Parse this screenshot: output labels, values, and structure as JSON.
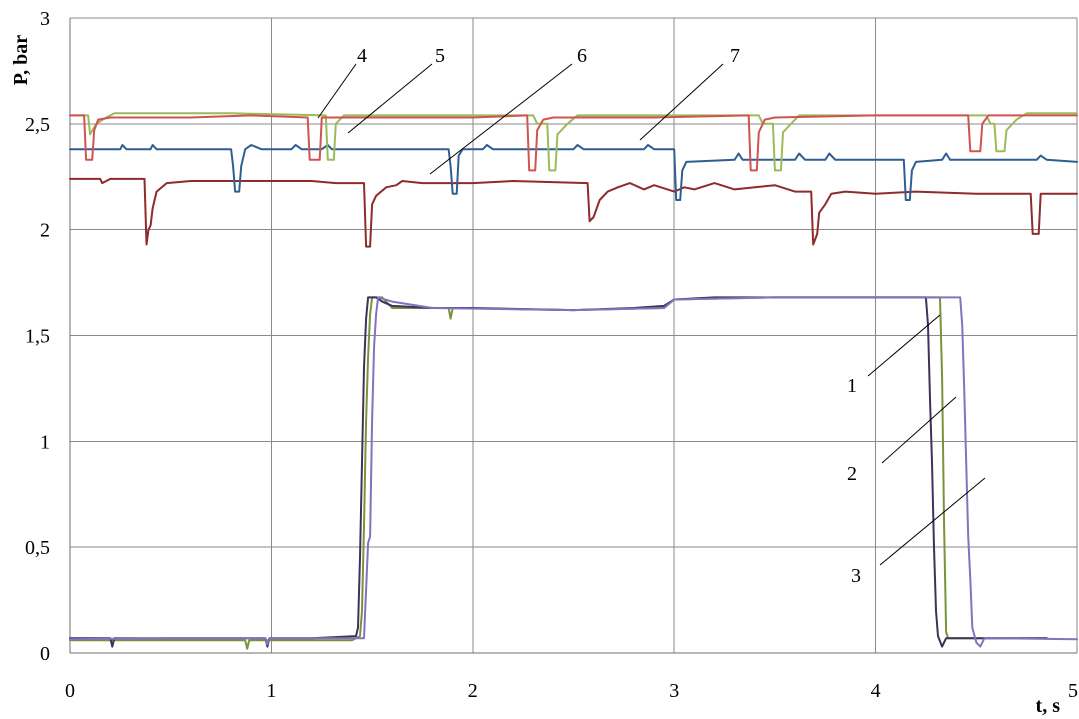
{
  "chart_data": {
    "type": "line",
    "title": "",
    "xlabel": "t, s",
    "ylabel": "P, bar",
    "xlim": [
      0,
      5
    ],
    "ylim": [
      0,
      3
    ],
    "grid": true,
    "legend": "none",
    "xticks": [
      {
        "value": 0,
        "label": "0"
      },
      {
        "value": 1,
        "label": "1"
      },
      {
        "value": 2,
        "label": "2"
      },
      {
        "value": 3,
        "label": "3"
      },
      {
        "value": 4,
        "label": "4"
      },
      {
        "value": 5,
        "label": "5"
      }
    ],
    "yticks": [
      {
        "value": 0,
        "label": "0"
      },
      {
        "value": 0.5,
        "label": "0,5"
      },
      {
        "value": 1,
        "label": "1"
      },
      {
        "value": 1.5,
        "label": "1,5"
      },
      {
        "value": 2,
        "label": "2"
      },
      {
        "value": 2.5,
        "label": "2,5"
      },
      {
        "value": 3,
        "label": "3"
      }
    ],
    "series": [
      {
        "name": "1",
        "color": "#3f3158",
        "points": [
          [
            0,
            0.07
          ],
          [
            0.2,
            0.07
          ],
          [
            0.21,
            0.03
          ],
          [
            0.22,
            0.07
          ],
          [
            0.5,
            0.07
          ],
          [
            0.97,
            0.07
          ],
          [
            0.98,
            0.03
          ],
          [
            0.99,
            0.07
          ],
          [
            1.2,
            0.07
          ],
          [
            1.42,
            0.08
          ],
          [
            1.43,
            0.12
          ],
          [
            1.44,
            0.45
          ],
          [
            1.45,
            0.9
          ],
          [
            1.46,
            1.35
          ],
          [
            1.47,
            1.58
          ],
          [
            1.48,
            1.68
          ],
          [
            1.52,
            1.68
          ],
          [
            1.55,
            1.66
          ],
          [
            1.6,
            1.64
          ],
          [
            1.8,
            1.63
          ],
          [
            2.0,
            1.63
          ],
          [
            2.5,
            1.62
          ],
          [
            2.8,
            1.63
          ],
          [
            2.95,
            1.64
          ],
          [
            3.0,
            1.67
          ],
          [
            3.2,
            1.68
          ],
          [
            3.5,
            1.68
          ],
          [
            4.0,
            1.68
          ],
          [
            4.25,
            1.68
          ],
          [
            4.26,
            1.55
          ],
          [
            4.27,
            1.2
          ],
          [
            4.28,
            0.9
          ],
          [
            4.29,
            0.5
          ],
          [
            4.3,
            0.2
          ],
          [
            4.31,
            0.08
          ],
          [
            4.33,
            0.03
          ],
          [
            4.35,
            0.07
          ],
          [
            4.85,
            0.07
          ]
        ]
      },
      {
        "name": "2",
        "color": "#77933c",
        "points": [
          [
            0,
            0.06
          ],
          [
            0.87,
            0.06
          ],
          [
            0.88,
            0.02
          ],
          [
            0.89,
            0.06
          ],
          [
            1.4,
            0.06
          ],
          [
            1.44,
            0.08
          ],
          [
            1.45,
            0.2
          ],
          [
            1.46,
            0.6
          ],
          [
            1.47,
            1.1
          ],
          [
            1.48,
            1.4
          ],
          [
            1.49,
            1.6
          ],
          [
            1.5,
            1.68
          ],
          [
            1.55,
            1.68
          ],
          [
            1.6,
            1.63
          ],
          [
            1.88,
            1.63
          ],
          [
            1.89,
            1.58
          ],
          [
            1.9,
            1.63
          ],
          [
            2.5,
            1.62
          ],
          [
            2.95,
            1.63
          ],
          [
            3.0,
            1.67
          ],
          [
            3.5,
            1.68
          ],
          [
            4.0,
            1.68
          ],
          [
            4.32,
            1.68
          ],
          [
            4.33,
            1.3
          ],
          [
            4.34,
            0.6
          ],
          [
            4.35,
            0.1
          ],
          [
            4.36,
            0.07
          ],
          [
            4.85,
            0.07
          ]
        ]
      },
      {
        "name": "3",
        "color": "#8273bf",
        "points": [
          [
            0,
            0.065
          ],
          [
            0.5,
            0.07
          ],
          [
            0.97,
            0.07
          ],
          [
            0.98,
            0.04
          ],
          [
            0.99,
            0.07
          ],
          [
            1.46,
            0.07
          ],
          [
            1.47,
            0.3
          ],
          [
            1.48,
            0.52
          ],
          [
            1.49,
            0.55
          ],
          [
            1.5,
            1.1
          ],
          [
            1.51,
            1.45
          ],
          [
            1.52,
            1.6
          ],
          [
            1.53,
            1.68
          ],
          [
            1.6,
            1.66
          ],
          [
            1.8,
            1.63
          ],
          [
            2.5,
            1.62
          ],
          [
            2.95,
            1.63
          ],
          [
            3.0,
            1.67
          ],
          [
            3.5,
            1.68
          ],
          [
            4.0,
            1.68
          ],
          [
            4.42,
            1.68
          ],
          [
            4.43,
            1.55
          ],
          [
            4.44,
            1.25
          ],
          [
            4.45,
            0.9
          ],
          [
            4.46,
            0.55
          ],
          [
            4.47,
            0.35
          ],
          [
            4.48,
            0.12
          ],
          [
            4.5,
            0.05
          ],
          [
            4.52,
            0.03
          ],
          [
            4.54,
            0.07
          ],
          [
            5.0,
            0.065
          ]
        ]
      },
      {
        "name": "4",
        "color": "#cf5450",
        "points": [
          [
            0,
            2.54
          ],
          [
            0.07,
            2.54
          ],
          [
            0.08,
            2.33
          ],
          [
            0.11,
            2.33
          ],
          [
            0.12,
            2.47
          ],
          [
            0.14,
            2.52
          ],
          [
            0.2,
            2.53
          ],
          [
            0.6,
            2.53
          ],
          [
            0.9,
            2.54
          ],
          [
            1.18,
            2.53
          ],
          [
            1.19,
            2.33
          ],
          [
            1.24,
            2.33
          ],
          [
            1.25,
            2.53
          ],
          [
            1.6,
            2.53
          ],
          [
            2.0,
            2.53
          ],
          [
            2.27,
            2.54
          ],
          [
            2.28,
            2.28
          ],
          [
            2.31,
            2.28
          ],
          [
            2.32,
            2.47
          ],
          [
            2.35,
            2.52
          ],
          [
            2.4,
            2.53
          ],
          [
            2.9,
            2.53
          ],
          [
            3.37,
            2.54
          ],
          [
            3.38,
            2.28
          ],
          [
            3.41,
            2.28
          ],
          [
            3.42,
            2.46
          ],
          [
            3.45,
            2.52
          ],
          [
            3.5,
            2.53
          ],
          [
            4.0,
            2.54
          ],
          [
            4.46,
            2.54
          ],
          [
            4.47,
            2.37
          ],
          [
            4.52,
            2.37
          ],
          [
            4.53,
            2.5
          ],
          [
            4.56,
            2.54
          ],
          [
            5.0,
            2.54
          ]
        ]
      },
      {
        "name": "5",
        "color": "#9bbb59",
        "points": [
          [
            0,
            2.54
          ],
          [
            0.09,
            2.54
          ],
          [
            0.1,
            2.45
          ],
          [
            0.13,
            2.5
          ],
          [
            0.18,
            2.53
          ],
          [
            0.22,
            2.55
          ],
          [
            0.8,
            2.55
          ],
          [
            1.27,
            2.54
          ],
          [
            1.28,
            2.33
          ],
          [
            1.31,
            2.33
          ],
          [
            1.32,
            2.5
          ],
          [
            1.36,
            2.54
          ],
          [
            2.3,
            2.54
          ],
          [
            2.32,
            2.5
          ],
          [
            2.37,
            2.5
          ],
          [
            2.38,
            2.28
          ],
          [
            2.41,
            2.28
          ],
          [
            2.42,
            2.45
          ],
          [
            2.47,
            2.5
          ],
          [
            2.52,
            2.54
          ],
          [
            3.42,
            2.54
          ],
          [
            3.44,
            2.5
          ],
          [
            3.49,
            2.5
          ],
          [
            3.5,
            2.28
          ],
          [
            3.53,
            2.28
          ],
          [
            3.54,
            2.46
          ],
          [
            3.58,
            2.5
          ],
          [
            3.62,
            2.54
          ],
          [
            4.55,
            2.54
          ],
          [
            4.57,
            2.5
          ],
          [
            4.59,
            2.5
          ],
          [
            4.6,
            2.37
          ],
          [
            4.64,
            2.37
          ],
          [
            4.65,
            2.47
          ],
          [
            4.7,
            2.52
          ],
          [
            4.75,
            2.55
          ],
          [
            5.0,
            2.55
          ]
        ]
      },
      {
        "name": "6",
        "color": "#8e2b2b",
        "points": [
          [
            0,
            2.24
          ],
          [
            0.15,
            2.24
          ],
          [
            0.16,
            2.22
          ],
          [
            0.2,
            2.24
          ],
          [
            0.37,
            2.24
          ],
          [
            0.38,
            1.93
          ],
          [
            0.39,
            2.0
          ],
          [
            0.4,
            2.02
          ],
          [
            0.41,
            2.1
          ],
          [
            0.43,
            2.18
          ],
          [
            0.48,
            2.22
          ],
          [
            0.6,
            2.23
          ],
          [
            0.8,
            2.23
          ],
          [
            1.0,
            2.23
          ],
          [
            1.2,
            2.23
          ],
          [
            1.32,
            2.22
          ],
          [
            1.46,
            2.22
          ],
          [
            1.47,
            1.92
          ],
          [
            1.49,
            1.92
          ],
          [
            1.5,
            2.12
          ],
          [
            1.52,
            2.16
          ],
          [
            1.57,
            2.2
          ],
          [
            1.62,
            2.21
          ],
          [
            1.65,
            2.23
          ],
          [
            1.75,
            2.22
          ],
          [
            2.0,
            2.22
          ],
          [
            2.2,
            2.23
          ],
          [
            2.57,
            2.22
          ],
          [
            2.58,
            2.04
          ],
          [
            2.6,
            2.06
          ],
          [
            2.63,
            2.14
          ],
          [
            2.67,
            2.18
          ],
          [
            2.72,
            2.2
          ],
          [
            2.78,
            2.22
          ],
          [
            2.85,
            2.19
          ],
          [
            2.9,
            2.21
          ],
          [
            3.0,
            2.18
          ],
          [
            3.05,
            2.2
          ],
          [
            3.1,
            2.19
          ],
          [
            3.2,
            2.22
          ],
          [
            3.3,
            2.19
          ],
          [
            3.4,
            2.2
          ],
          [
            3.5,
            2.21
          ],
          [
            3.6,
            2.18
          ],
          [
            3.68,
            2.18
          ],
          [
            3.69,
            1.93
          ],
          [
            3.71,
            1.98
          ],
          [
            3.72,
            2.08
          ],
          [
            3.75,
            2.12
          ],
          [
            3.78,
            2.17
          ],
          [
            3.85,
            2.18
          ],
          [
            4.0,
            2.17
          ],
          [
            4.2,
            2.18
          ],
          [
            4.5,
            2.17
          ],
          [
            4.77,
            2.17
          ],
          [
            4.78,
            1.98
          ],
          [
            4.81,
            1.98
          ],
          [
            4.82,
            2.17
          ],
          [
            5.0,
            2.17
          ]
        ]
      },
      {
        "name": "7",
        "color": "#2f5f8f",
        "points": [
          [
            0,
            2.38
          ],
          [
            0.25,
            2.38
          ],
          [
            0.26,
            2.4
          ],
          [
            0.28,
            2.38
          ],
          [
            0.4,
            2.38
          ],
          [
            0.41,
            2.4
          ],
          [
            0.43,
            2.38
          ],
          [
            0.8,
            2.38
          ],
          [
            0.81,
            2.3
          ],
          [
            0.82,
            2.18
          ],
          [
            0.84,
            2.18
          ],
          [
            0.85,
            2.3
          ],
          [
            0.87,
            2.38
          ],
          [
            0.9,
            2.4
          ],
          [
            0.95,
            2.38
          ],
          [
            1.1,
            2.38
          ],
          [
            1.12,
            2.4
          ],
          [
            1.15,
            2.38
          ],
          [
            1.25,
            2.38
          ],
          [
            1.28,
            2.4
          ],
          [
            1.3,
            2.38
          ],
          [
            1.88,
            2.38
          ],
          [
            1.89,
            2.3
          ],
          [
            1.9,
            2.17
          ],
          [
            1.92,
            2.17
          ],
          [
            1.93,
            2.35
          ],
          [
            1.95,
            2.38
          ],
          [
            2.05,
            2.38
          ],
          [
            2.07,
            2.4
          ],
          [
            2.1,
            2.38
          ],
          [
            2.5,
            2.38
          ],
          [
            2.52,
            2.4
          ],
          [
            2.55,
            2.38
          ],
          [
            2.85,
            2.38
          ],
          [
            2.87,
            2.4
          ],
          [
            2.9,
            2.38
          ],
          [
            3.0,
            2.38
          ],
          [
            3.01,
            2.14
          ],
          [
            3.03,
            2.14
          ],
          [
            3.04,
            2.28
          ],
          [
            3.06,
            2.32
          ],
          [
            3.3,
            2.33
          ],
          [
            3.32,
            2.36
          ],
          [
            3.34,
            2.33
          ],
          [
            3.6,
            2.33
          ],
          [
            3.62,
            2.36
          ],
          [
            3.65,
            2.33
          ],
          [
            3.75,
            2.33
          ],
          [
            3.77,
            2.36
          ],
          [
            3.8,
            2.33
          ],
          [
            4.14,
            2.33
          ],
          [
            4.15,
            2.14
          ],
          [
            4.17,
            2.14
          ],
          [
            4.18,
            2.28
          ],
          [
            4.2,
            2.32
          ],
          [
            4.33,
            2.33
          ],
          [
            4.35,
            2.36
          ],
          [
            4.37,
            2.33
          ],
          [
            4.8,
            2.33
          ],
          [
            4.82,
            2.35
          ],
          [
            4.85,
            2.33
          ],
          [
            5.0,
            2.32
          ]
        ]
      }
    ],
    "annotations": [
      {
        "text": "1",
        "series": "1"
      },
      {
        "text": "2",
        "series": "2"
      },
      {
        "text": "3",
        "series": "3"
      },
      {
        "text": "4",
        "series": "4"
      },
      {
        "text": "5",
        "series": "5"
      },
      {
        "text": "6",
        "series": "6"
      },
      {
        "text": "7",
        "series": "7"
      }
    ]
  }
}
